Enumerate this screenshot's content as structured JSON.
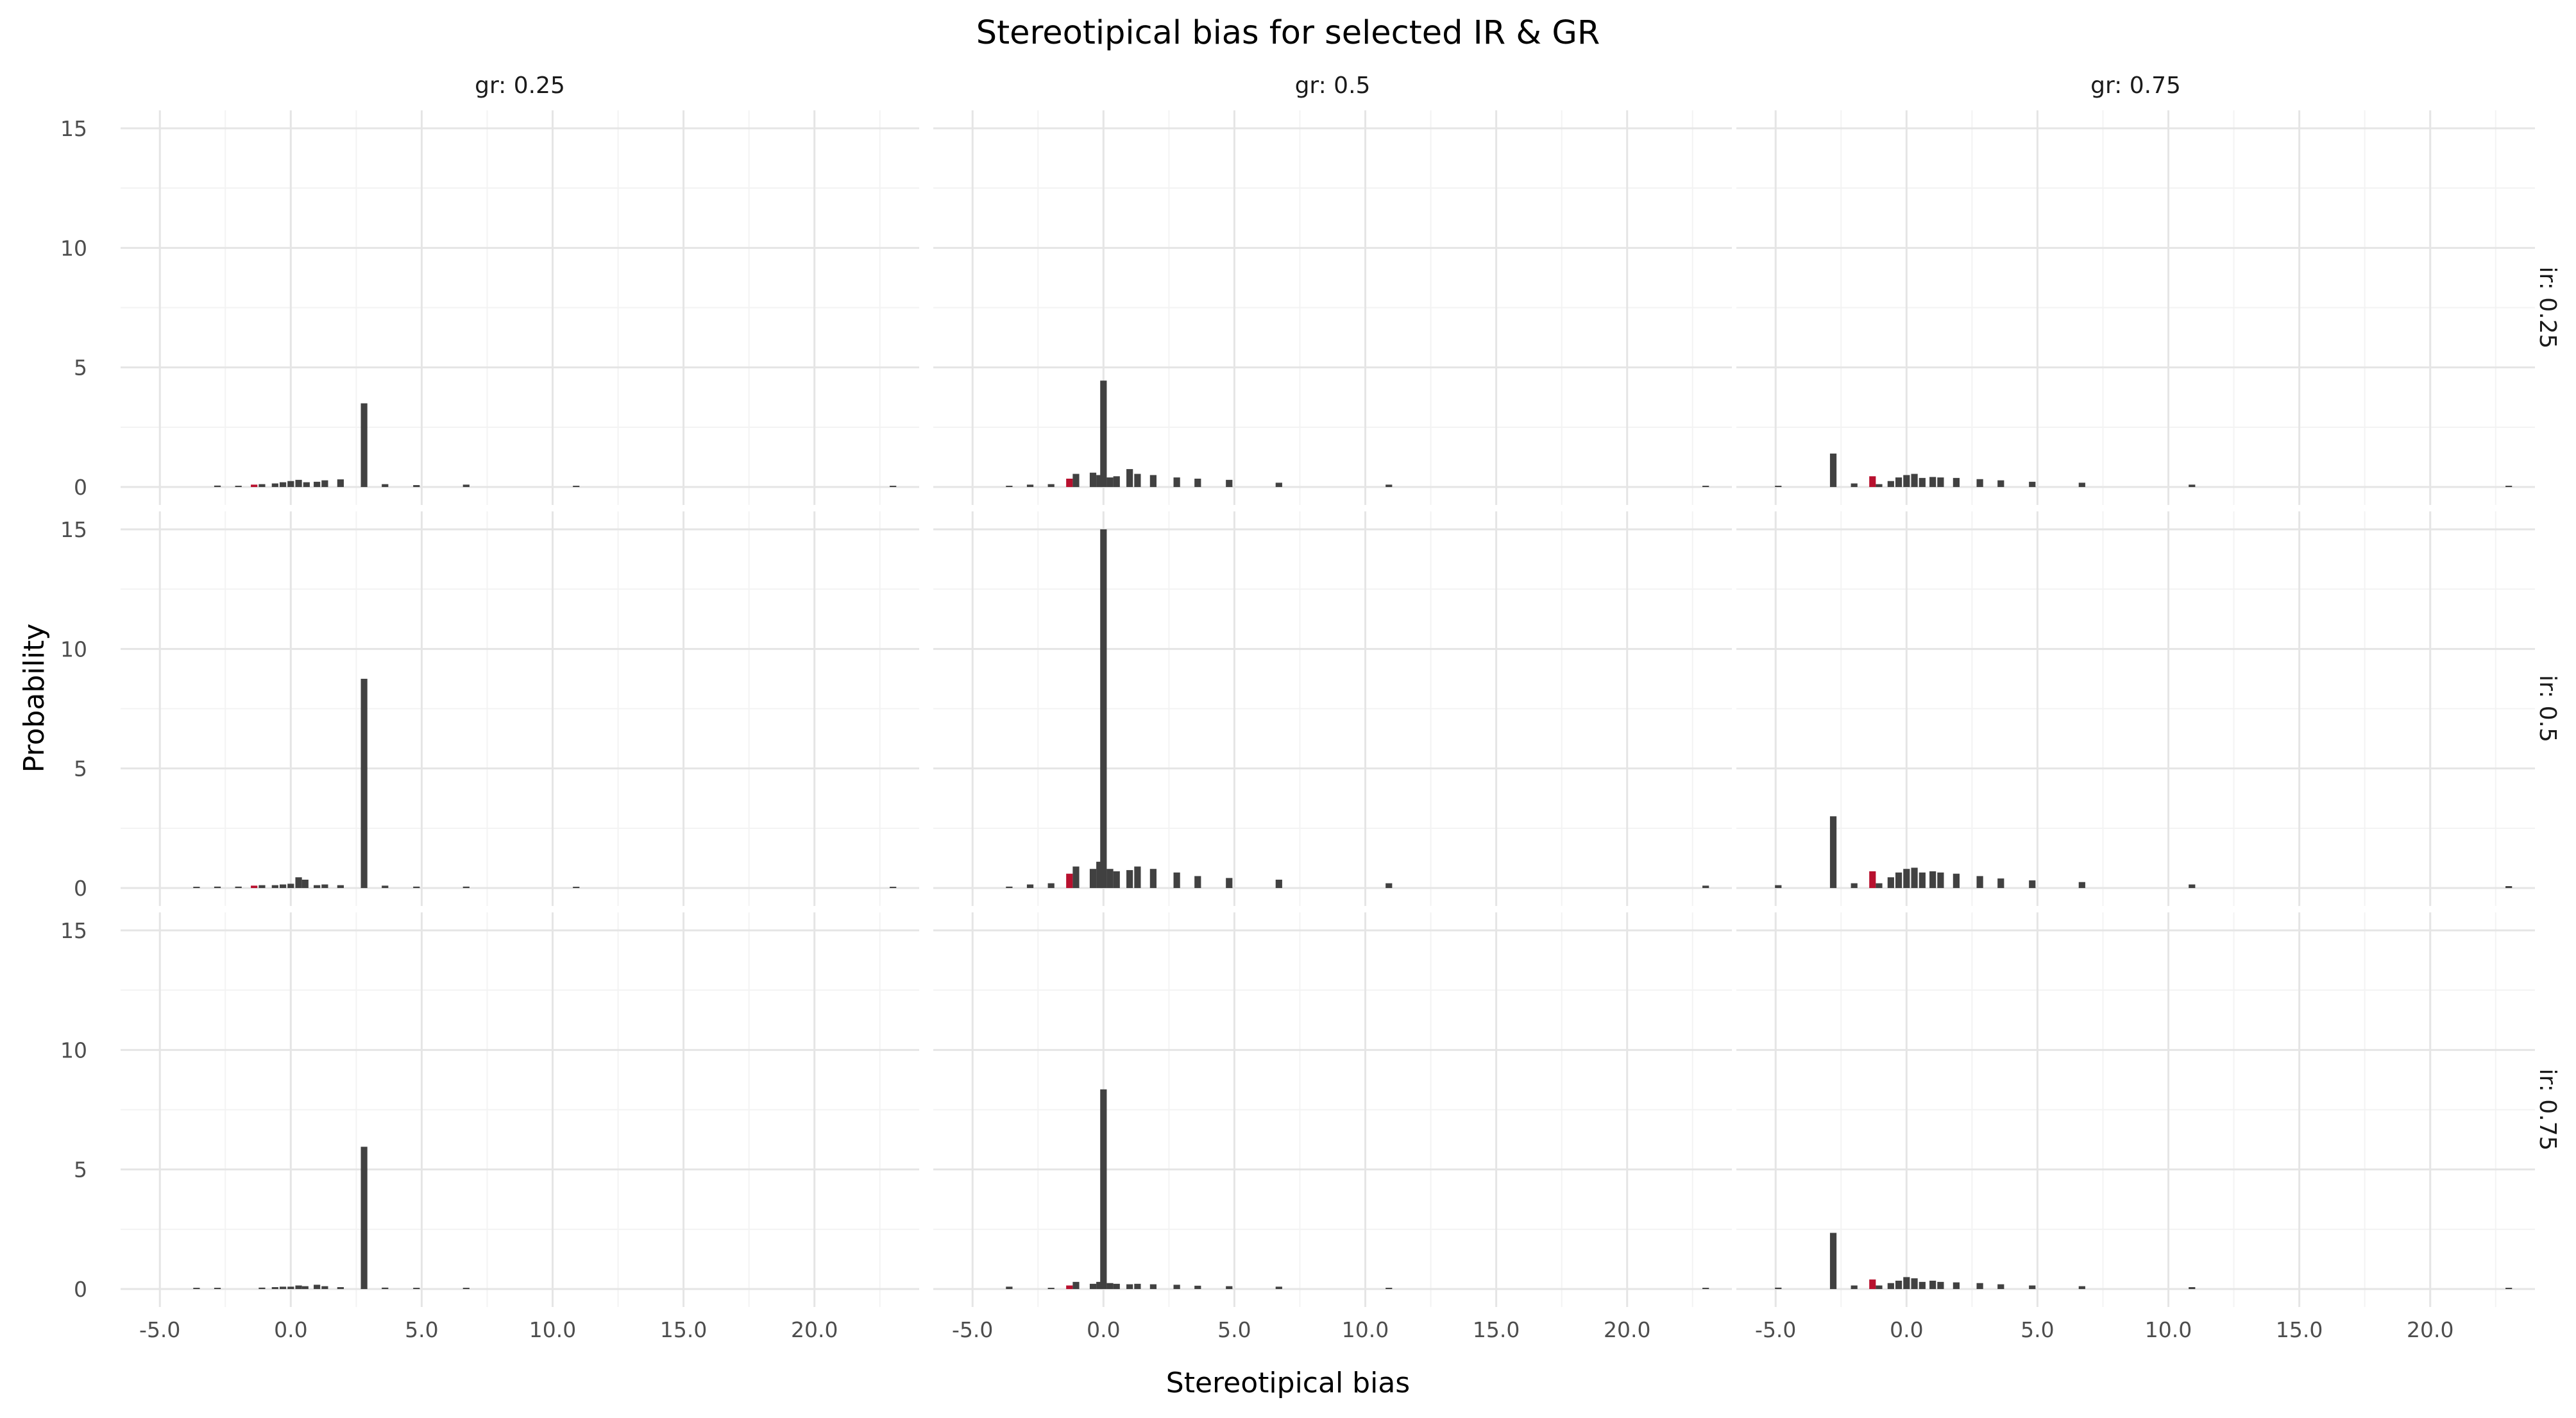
{
  "chart_data": {
    "type": "bar",
    "title": "Stereotipical bias for selected IR & GR",
    "xlabel": "Stereotipical bias",
    "ylabel": "Probability",
    "xlim": [
      -6.5,
      24.0
    ],
    "ylim": [
      -0.75,
      15.75
    ],
    "x_ticks": [
      -5.0,
      0.0,
      5.0,
      10.0,
      15.0,
      20.0
    ],
    "x_tick_labels": [
      "-5.0",
      "0.0",
      "5.0",
      "10.0",
      "15.0",
      "20.0"
    ],
    "y_ticks": [
      0,
      5,
      10,
      15
    ],
    "y_tick_labels": [
      "0",
      "5",
      "10",
      "15"
    ],
    "grid": true,
    "bar_width": 0.25,
    "facet_cols": [
      {
        "key": "0.25",
        "label": "gr: 0.25"
      },
      {
        "key": "0.5",
        "label": "gr: 0.5"
      },
      {
        "key": "0.75",
        "label": "gr: 0.75"
      }
    ],
    "facet_rows": [
      {
        "key": "0.25",
        "label": "ir: 0.25"
      },
      {
        "key": "0.5",
        "label": "ir: 0.5"
      },
      {
        "key": "0.75",
        "label": "ir: 0.75"
      }
    ],
    "colors": {
      "bar": "#414141",
      "highlight": "#b8102e"
    },
    "panels": [
      {
        "ir": "0.25",
        "gr": "0.25",
        "bars": [
          {
            "x": -2.8,
            "y": 0.06
          },
          {
            "x": -2.0,
            "y": 0.05
          },
          {
            "x": -1.4,
            "y": 0.1,
            "highlight": true
          },
          {
            "x": -1.1,
            "y": 0.12
          },
          {
            "x": -0.6,
            "y": 0.15
          },
          {
            "x": -0.3,
            "y": 0.2
          },
          {
            "x": 0.0,
            "y": 0.25
          },
          {
            "x": 0.3,
            "y": 0.3
          },
          {
            "x": 0.6,
            "y": 0.2
          },
          {
            "x": 1.0,
            "y": 0.22
          },
          {
            "x": 1.3,
            "y": 0.28
          },
          {
            "x": 1.9,
            "y": 0.32
          },
          {
            "x": 2.8,
            "y": 3.5
          },
          {
            "x": 3.6,
            "y": 0.12
          },
          {
            "x": 4.8,
            "y": 0.08
          },
          {
            "x": 6.7,
            "y": 0.1
          },
          {
            "x": 10.9,
            "y": 0.05
          },
          {
            "x": 23.0,
            "y": 0.03
          }
        ]
      },
      {
        "ir": "0.25",
        "gr": "0.5",
        "bars": [
          {
            "x": -3.6,
            "y": 0.04
          },
          {
            "x": -2.8,
            "y": 0.1
          },
          {
            "x": -2.0,
            "y": 0.12
          },
          {
            "x": -1.3,
            "y": 0.35,
            "highlight": true
          },
          {
            "x": -1.05,
            "y": 0.55
          },
          {
            "x": -0.4,
            "y": 0.6
          },
          {
            "x": -0.15,
            "y": 0.5
          },
          {
            "x": 0.0,
            "y": 4.45
          },
          {
            "x": 0.25,
            "y": 0.4
          },
          {
            "x": 0.5,
            "y": 0.45
          },
          {
            "x": 1.0,
            "y": 0.75
          },
          {
            "x": 1.3,
            "y": 0.55
          },
          {
            "x": 1.9,
            "y": 0.5
          },
          {
            "x": 2.8,
            "y": 0.4
          },
          {
            "x": 3.6,
            "y": 0.35
          },
          {
            "x": 4.8,
            "y": 0.3
          },
          {
            "x": 6.7,
            "y": 0.18
          },
          {
            "x": 10.9,
            "y": 0.1
          },
          {
            "x": 23.0,
            "y": 0.05
          }
        ]
      },
      {
        "ir": "0.25",
        "gr": "0.75",
        "bars": [
          {
            "x": -4.9,
            "y": 0.05
          },
          {
            "x": -2.8,
            "y": 1.4
          },
          {
            "x": -2.0,
            "y": 0.15
          },
          {
            "x": -1.3,
            "y": 0.45,
            "highlight": true
          },
          {
            "x": -1.05,
            "y": 0.12
          },
          {
            "x": -0.6,
            "y": 0.25
          },
          {
            "x": -0.3,
            "y": 0.4
          },
          {
            "x": 0.0,
            "y": 0.5
          },
          {
            "x": 0.3,
            "y": 0.55
          },
          {
            "x": 0.6,
            "y": 0.38
          },
          {
            "x": 1.0,
            "y": 0.42
          },
          {
            "x": 1.3,
            "y": 0.4
          },
          {
            "x": 1.9,
            "y": 0.38
          },
          {
            "x": 2.8,
            "y": 0.33
          },
          {
            "x": 3.6,
            "y": 0.28
          },
          {
            "x": 4.8,
            "y": 0.22
          },
          {
            "x": 6.7,
            "y": 0.18
          },
          {
            "x": 10.9,
            "y": 0.1
          },
          {
            "x": 23.0,
            "y": 0.05
          }
        ]
      },
      {
        "ir": "0.5",
        "gr": "0.25",
        "bars": [
          {
            "x": -3.6,
            "y": 0.03
          },
          {
            "x": -2.8,
            "y": 0.06
          },
          {
            "x": -2.0,
            "y": 0.06
          },
          {
            "x": -1.4,
            "y": 0.1,
            "highlight": true
          },
          {
            "x": -1.1,
            "y": 0.12
          },
          {
            "x": -0.6,
            "y": 0.12
          },
          {
            "x": -0.3,
            "y": 0.15
          },
          {
            "x": 0.0,
            "y": 0.18
          },
          {
            "x": 0.3,
            "y": 0.45
          },
          {
            "x": 0.55,
            "y": 0.35
          },
          {
            "x": 1.0,
            "y": 0.12
          },
          {
            "x": 1.3,
            "y": 0.15
          },
          {
            "x": 1.9,
            "y": 0.12
          },
          {
            "x": 2.8,
            "y": 8.75
          },
          {
            "x": 3.6,
            "y": 0.1
          },
          {
            "x": 4.8,
            "y": 0.06
          },
          {
            "x": 6.7,
            "y": 0.06
          },
          {
            "x": 10.9,
            "y": 0.04
          },
          {
            "x": 23.0,
            "y": 0.03
          }
        ]
      },
      {
        "ir": "0.5",
        "gr": "0.5",
        "bars": [
          {
            "x": -3.6,
            "y": 0.06
          },
          {
            "x": -2.8,
            "y": 0.15
          },
          {
            "x": -2.0,
            "y": 0.2
          },
          {
            "x": -1.3,
            "y": 0.6,
            "highlight": true
          },
          {
            "x": -1.05,
            "y": 0.9
          },
          {
            "x": -0.4,
            "y": 0.8
          },
          {
            "x": -0.15,
            "y": 1.1
          },
          {
            "x": 0.0,
            "y": 15.0
          },
          {
            "x": 0.25,
            "y": 0.8
          },
          {
            "x": 0.5,
            "y": 0.7
          },
          {
            "x": 1.0,
            "y": 0.75
          },
          {
            "x": 1.3,
            "y": 0.9
          },
          {
            "x": 1.9,
            "y": 0.8
          },
          {
            "x": 2.8,
            "y": 0.65
          },
          {
            "x": 3.6,
            "y": 0.5
          },
          {
            "x": 4.8,
            "y": 0.42
          },
          {
            "x": 6.7,
            "y": 0.35
          },
          {
            "x": 10.9,
            "y": 0.2
          },
          {
            "x": 23.0,
            "y": 0.1
          }
        ]
      },
      {
        "ir": "0.5",
        "gr": "0.75",
        "bars": [
          {
            "x": -4.9,
            "y": 0.12
          },
          {
            "x": -2.8,
            "y": 3.0
          },
          {
            "x": -2.0,
            "y": 0.2
          },
          {
            "x": -1.3,
            "y": 0.7,
            "highlight": true
          },
          {
            "x": -1.05,
            "y": 0.2
          },
          {
            "x": -0.6,
            "y": 0.45
          },
          {
            "x": -0.3,
            "y": 0.65
          },
          {
            "x": 0.0,
            "y": 0.8
          },
          {
            "x": 0.3,
            "y": 0.85
          },
          {
            "x": 0.6,
            "y": 0.65
          },
          {
            "x": 1.0,
            "y": 0.7
          },
          {
            "x": 1.3,
            "y": 0.65
          },
          {
            "x": 1.9,
            "y": 0.6
          },
          {
            "x": 2.8,
            "y": 0.5
          },
          {
            "x": 3.6,
            "y": 0.4
          },
          {
            "x": 4.8,
            "y": 0.32
          },
          {
            "x": 6.7,
            "y": 0.25
          },
          {
            "x": 10.9,
            "y": 0.15
          },
          {
            "x": 23.0,
            "y": 0.08
          }
        ]
      },
      {
        "ir": "0.75",
        "gr": "0.25",
        "bars": [
          {
            "x": -3.6,
            "y": 0.03
          },
          {
            "x": -2.8,
            "y": 0.03
          },
          {
            "x": -1.1,
            "y": 0.06
          },
          {
            "x": -0.6,
            "y": 0.08
          },
          {
            "x": -0.3,
            "y": 0.1
          },
          {
            "x": 0.0,
            "y": 0.1
          },
          {
            "x": 0.3,
            "y": 0.15
          },
          {
            "x": 0.55,
            "y": 0.12
          },
          {
            "x": 1.0,
            "y": 0.18
          },
          {
            "x": 1.3,
            "y": 0.12
          },
          {
            "x": 1.9,
            "y": 0.08
          },
          {
            "x": 2.8,
            "y": 5.95
          },
          {
            "x": 3.6,
            "y": 0.06
          },
          {
            "x": 4.8,
            "y": 0.04
          },
          {
            "x": 6.7,
            "y": 0.04
          }
        ]
      },
      {
        "ir": "0.75",
        "gr": "0.5",
        "bars": [
          {
            "x": -3.6,
            "y": 0.1
          },
          {
            "x": -2.0,
            "y": 0.05
          },
          {
            "x": -1.3,
            "y": 0.15,
            "highlight": true
          },
          {
            "x": -1.05,
            "y": 0.3
          },
          {
            "x": -0.4,
            "y": 0.22
          },
          {
            "x": -0.15,
            "y": 0.3
          },
          {
            "x": 0.0,
            "y": 8.35
          },
          {
            "x": 0.25,
            "y": 0.25
          },
          {
            "x": 0.5,
            "y": 0.22
          },
          {
            "x": 1.0,
            "y": 0.2
          },
          {
            "x": 1.3,
            "y": 0.22
          },
          {
            "x": 1.9,
            "y": 0.2
          },
          {
            "x": 2.8,
            "y": 0.18
          },
          {
            "x": 3.6,
            "y": 0.14
          },
          {
            "x": 4.8,
            "y": 0.12
          },
          {
            "x": 6.7,
            "y": 0.1
          },
          {
            "x": 10.9,
            "y": 0.05
          },
          {
            "x": 23.0,
            "y": 0.03
          }
        ]
      },
      {
        "ir": "0.75",
        "gr": "0.75",
        "bars": [
          {
            "x": -4.9,
            "y": 0.06
          },
          {
            "x": -2.8,
            "y": 2.35
          },
          {
            "x": -2.0,
            "y": 0.15
          },
          {
            "x": -1.3,
            "y": 0.4,
            "highlight": true
          },
          {
            "x": -1.05,
            "y": 0.15
          },
          {
            "x": -0.6,
            "y": 0.25
          },
          {
            "x": -0.3,
            "y": 0.35
          },
          {
            "x": 0.0,
            "y": 0.5
          },
          {
            "x": 0.3,
            "y": 0.45
          },
          {
            "x": 0.6,
            "y": 0.3
          },
          {
            "x": 1.0,
            "y": 0.35
          },
          {
            "x": 1.3,
            "y": 0.3
          },
          {
            "x": 1.9,
            "y": 0.28
          },
          {
            "x": 2.8,
            "y": 0.25
          },
          {
            "x": 3.6,
            "y": 0.2
          },
          {
            "x": 4.8,
            "y": 0.15
          },
          {
            "x": 6.7,
            "y": 0.12
          },
          {
            "x": 10.9,
            "y": 0.08
          },
          {
            "x": 23.0,
            "y": 0.05
          }
        ]
      }
    ]
  }
}
